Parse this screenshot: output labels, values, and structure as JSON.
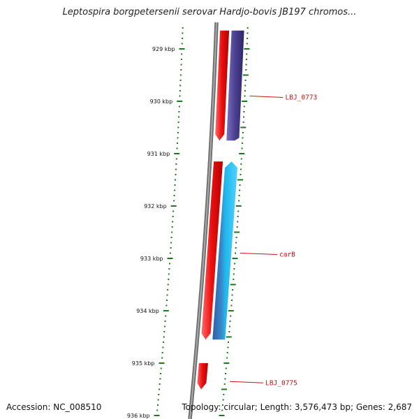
{
  "title": "Leptospira borgpetersenii serovar Hardjo-bovis JB197 chromos...",
  "accession_text": "Accession: NC_008510",
  "summary_text": "Topology: circular; Length: 3,576,473 bp; Genes: 2,687",
  "colors": {
    "backbone": "#8a8a8a",
    "tick": "#1a7a1a",
    "forward_cds": "#ee1111",
    "reverse_cds_1": "#4a3f8f",
    "reverse_cds_2": "#1fb6ea",
    "label": "#cc1111"
  },
  "scale": {
    "unit": "kbp",
    "ticks": [
      {
        "kbp": 929,
        "label": "929 kbp"
      },
      {
        "kbp": 930,
        "label": "930 kbp"
      },
      {
        "kbp": 931,
        "label": "931 kbp"
      },
      {
        "kbp": 932,
        "label": "932 kbp"
      },
      {
        "kbp": 933,
        "label": "933 kbp"
      },
      {
        "kbp": 934,
        "label": "934 kbp"
      },
      {
        "kbp": 935,
        "label": "935 kbp"
      },
      {
        "kbp": 936,
        "label": "936 kbp"
      }
    ]
  },
  "features": [
    {
      "name": "fwd-cds-1",
      "strand": "+",
      "start_kbp": 928.65,
      "end_kbp": 930.75,
      "color": "#ee1111",
      "label": ""
    },
    {
      "name": "rev-cds-lbj0773",
      "strand": "-",
      "start_kbp": 928.65,
      "end_kbp": 930.75,
      "color": "#4a3f8f",
      "label": "LBJ_0773"
    },
    {
      "name": "fwd-cds-2",
      "strand": "+",
      "start_kbp": 931.15,
      "end_kbp": 934.55,
      "color": "#ee1111",
      "label": ""
    },
    {
      "name": "rev-cds-carb",
      "strand": "-",
      "start_kbp": 931.15,
      "end_kbp": 934.55,
      "color": "#1fb6ea",
      "label": "carB"
    },
    {
      "name": "fwd-cds-lbj0775",
      "strand": "+",
      "start_kbp": 935.0,
      "end_kbp": 935.5,
      "color": "#ee1111",
      "label": "LBJ_0775"
    }
  ],
  "gene_labels": [
    {
      "text": "LBJ_0773",
      "at_kbp": 929.9
    },
    {
      "text": "carB",
      "at_kbp": 932.9
    },
    {
      "text": "LBJ_0775",
      "at_kbp": 935.35
    }
  ]
}
